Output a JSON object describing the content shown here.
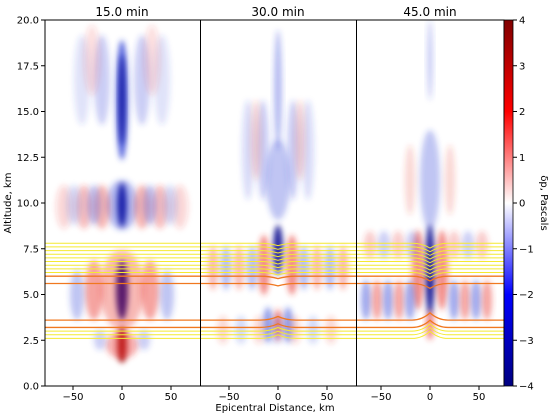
{
  "chart_data": {
    "type": "heatmap",
    "panels": [
      {
        "title": "15.0 min"
      },
      {
        "title": "30.0 min"
      },
      {
        "title": "45.0 min"
      }
    ],
    "xlabel": "Epicentral Distance, km",
    "ylabel": "Altitude, km",
    "xlim": [
      -80,
      80
    ],
    "ylim": [
      0,
      20
    ],
    "xticks": [
      -50,
      0,
      50
    ],
    "yticks": [
      0.0,
      2.5,
      5.0,
      7.5,
      10.0,
      12.5,
      15.0,
      17.5,
      20.0
    ],
    "colorbar": {
      "label": "δp, Pascals",
      "range": [
        -4,
        4
      ],
      "ticks": [
        4,
        3,
        2,
        1,
        0,
        -1,
        -2,
        -3,
        -4
      ],
      "colormap": "seismic"
    },
    "contour_band_altitudes_km": [
      2.6,
      2.8,
      3.0,
      3.2,
      3.6,
      5.6,
      6.0,
      6.2,
      6.4,
      6.6,
      6.8,
      7.0,
      7.2,
      7.4,
      7.6,
      7.8
    ],
    "colors": {
      "positive": "#cc0000",
      "negative": "#0000bb",
      "contour_orange": "#f07820",
      "contour_yellow": "#f4ea30"
    }
  }
}
